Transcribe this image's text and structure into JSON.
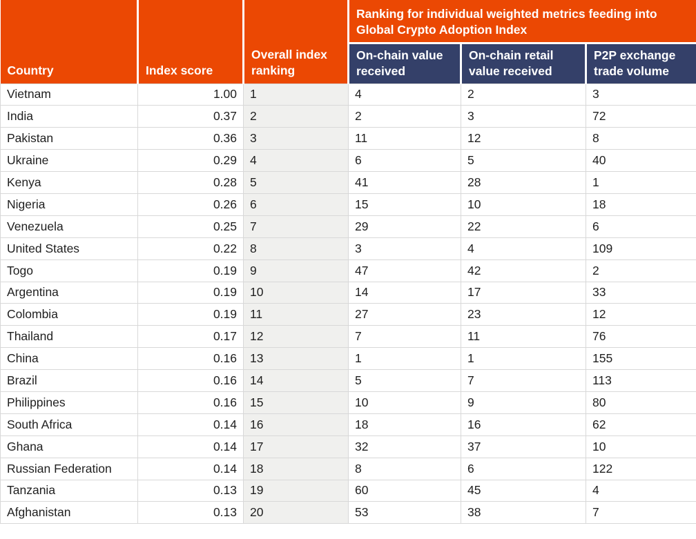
{
  "colors": {
    "header_orange": "#EB4803",
    "header_navy": "#344069",
    "ranking_column_bg": "#F0F0EE",
    "grid_line": "#D8D8D8",
    "header_text": "#FFFFFF",
    "body_text": "#1F1F1F"
  },
  "chart_data": {
    "type": "table",
    "group_header": "Ranking for individual weighted metrics feeding into Global Crypto Adoption Index",
    "columns": [
      "Country",
      "Index score",
      "Overall index ranking",
      "On-chain value received",
      "On-chain retail value received",
      "P2P exchange trade volume"
    ],
    "rows": [
      [
        "Vietnam",
        "1.00",
        "1",
        "4",
        "2",
        "3"
      ],
      [
        "India",
        "0.37",
        "2",
        "2",
        "3",
        "72"
      ],
      [
        "Pakistan",
        "0.36",
        "3",
        "11",
        "12",
        "8"
      ],
      [
        "Ukraine",
        "0.29",
        "4",
        "6",
        "5",
        "40"
      ],
      [
        "Kenya",
        "0.28",
        "5",
        "41",
        "28",
        "1"
      ],
      [
        "Nigeria",
        "0.26",
        "6",
        "15",
        "10",
        "18"
      ],
      [
        "Venezuela",
        "0.25",
        "7",
        "29",
        "22",
        "6"
      ],
      [
        "United States",
        "0.22",
        "8",
        "3",
        "4",
        "109"
      ],
      [
        "Togo",
        "0.19",
        "9",
        "47",
        "42",
        "2"
      ],
      [
        "Argentina",
        "0.19",
        "10",
        "14",
        "17",
        "33"
      ],
      [
        "Colombia",
        "0.19",
        "11",
        "27",
        "23",
        "12"
      ],
      [
        "Thailand",
        "0.17",
        "12",
        "7",
        "11",
        "76"
      ],
      [
        "China",
        "0.16",
        "13",
        "1",
        "1",
        "155"
      ],
      [
        "Brazil",
        "0.16",
        "14",
        "5",
        "7",
        "113"
      ],
      [
        "Philippines",
        "0.16",
        "15",
        "10",
        "9",
        "80"
      ],
      [
        "South Africa",
        "0.14",
        "16",
        "18",
        "16",
        "62"
      ],
      [
        "Ghana",
        "0.14",
        "17",
        "32",
        "37",
        "10"
      ],
      [
        "Russian Federation",
        "0.14",
        "18",
        "8",
        "6",
        "122"
      ],
      [
        "Tanzania",
        "0.13",
        "19",
        "60",
        "45",
        "4"
      ],
      [
        "Afghanistan",
        "0.13",
        "20",
        "53",
        "38",
        "7"
      ]
    ]
  }
}
